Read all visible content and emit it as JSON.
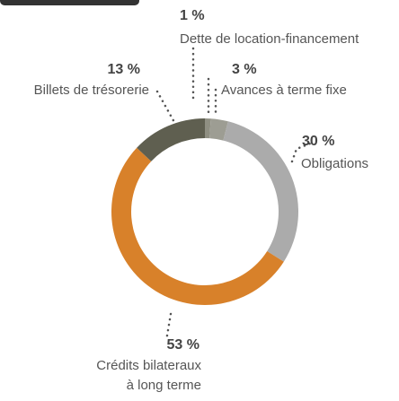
{
  "chart_data": {
    "type": "pie",
    "categories": [
      "Dette de location-financement",
      "Avances à terme fixe",
      "Obligations",
      [
        "Crédits bilateraux",
        "à long terme"
      ],
      "Billets de trésorerie"
    ],
    "values": [
      1,
      3,
      30,
      53,
      13
    ],
    "value_labels": [
      "1 %",
      "3 %",
      "30 %",
      "53 %",
      "13 %"
    ],
    "colors": [
      "#8f8f82",
      "#9d9d93",
      "#ababab",
      "#d8812a",
      "#5f5f50"
    ],
    "donut": true
  }
}
